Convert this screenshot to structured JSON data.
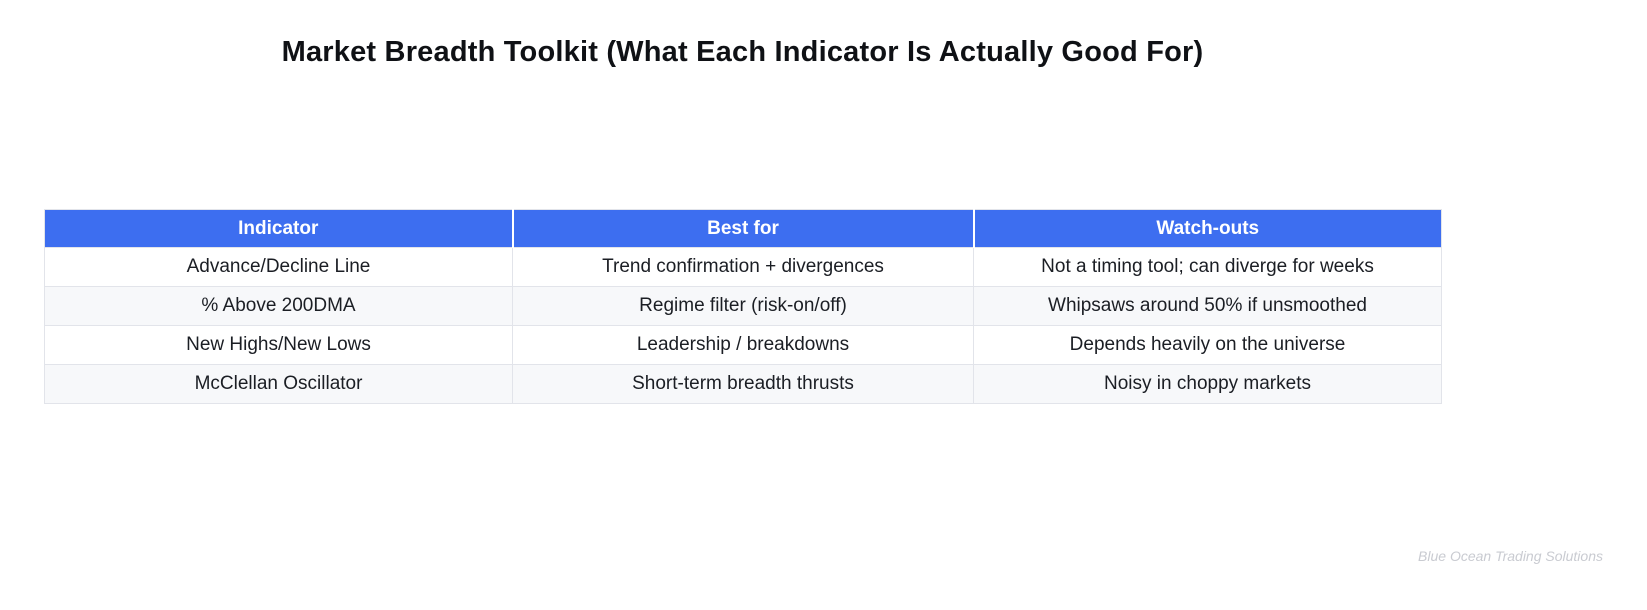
{
  "chart_data": {
    "type": "table",
    "title": "Market Breadth Toolkit (What Each Indicator Is Actually Good For)",
    "columns": [
      "Indicator",
      "Best for",
      "Watch-outs"
    ],
    "rows": [
      [
        "Advance/Decline Line",
        "Trend confirmation + divergences",
        "Not a timing tool; can diverge for weeks"
      ],
      [
        "% Above 200DMA",
        "Regime filter (risk-on/off)",
        "Whipsaws around 50% if unsmoothed"
      ],
      [
        "New Highs/New Lows",
        "Leadership / breakdowns",
        "Depends heavily on the universe"
      ],
      [
        "McClellan Oscillator",
        "Short-term breadth thrusts",
        "Noisy in choppy markets"
      ]
    ],
    "layout": {
      "legend": "none",
      "grid": "off",
      "zebra_striping": true
    }
  },
  "watermark": "Blue Ocean Trading Solutions",
  "colors": {
    "header_bg": "#3d6ef0",
    "header_text": "#ffffff",
    "row_alt_bg": "#f7f8fa",
    "border": "#e2e4ea",
    "text": "#1b1e24",
    "title_text": "#0f1115",
    "watermark_text": "#c9cbd1"
  }
}
